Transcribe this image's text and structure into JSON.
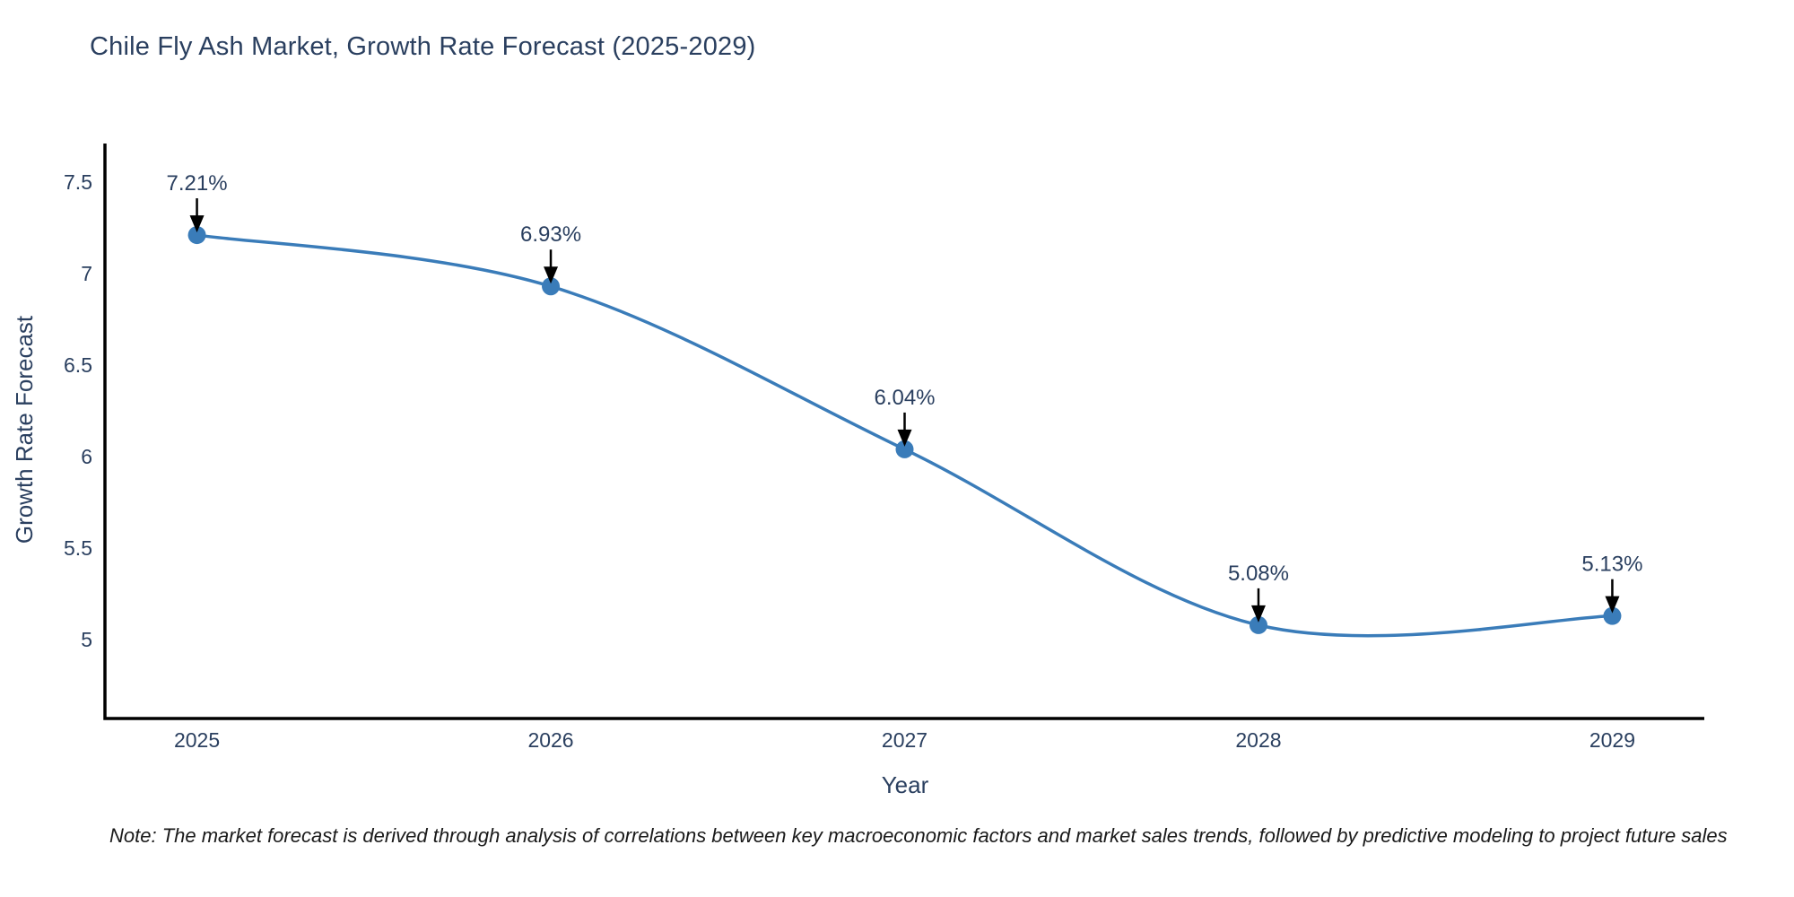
{
  "page": {
    "background": "#ffffff"
  },
  "chart_data": {
    "type": "line",
    "title": "Chile Fly Ash Market, Growth Rate Forecast (2025-2029)",
    "xlabel": "Year",
    "ylabel": "Growth Rate Forecast",
    "x": [
      2025,
      2026,
      2027,
      2028,
      2029
    ],
    "y": [
      7.21,
      6.93,
      6.04,
      5.08,
      5.13
    ],
    "data_labels": [
      "7.21%",
      "6.93%",
      "6.04%",
      "5.08%",
      "5.13%"
    ],
    "x_tick_labels": [
      "2025",
      "2026",
      "2027",
      "2028",
      "2029"
    ],
    "y_ticks": [
      7.5,
      7,
      6.5,
      6,
      5.5,
      5
    ],
    "xlim": [
      2024.74,
      2029.26
    ],
    "ylim": [
      4.57,
      7.71
    ],
    "line_shape": "spline",
    "grid": false,
    "legend": null,
    "marker_size": 10,
    "colors": {
      "line": "#3a7cb9",
      "marker": "#3a7cb9",
      "axis": "#000000",
      "text": "#2a3f5f",
      "annotation_text": "#2a3f5f",
      "arrow": "#000000",
      "note_text": "#1a1a1a"
    },
    "note": "Note: The market forecast is derived through analysis of correlations between key macroeconomic factors and market sales trends, followed by predictive modeling to project future sales"
  }
}
